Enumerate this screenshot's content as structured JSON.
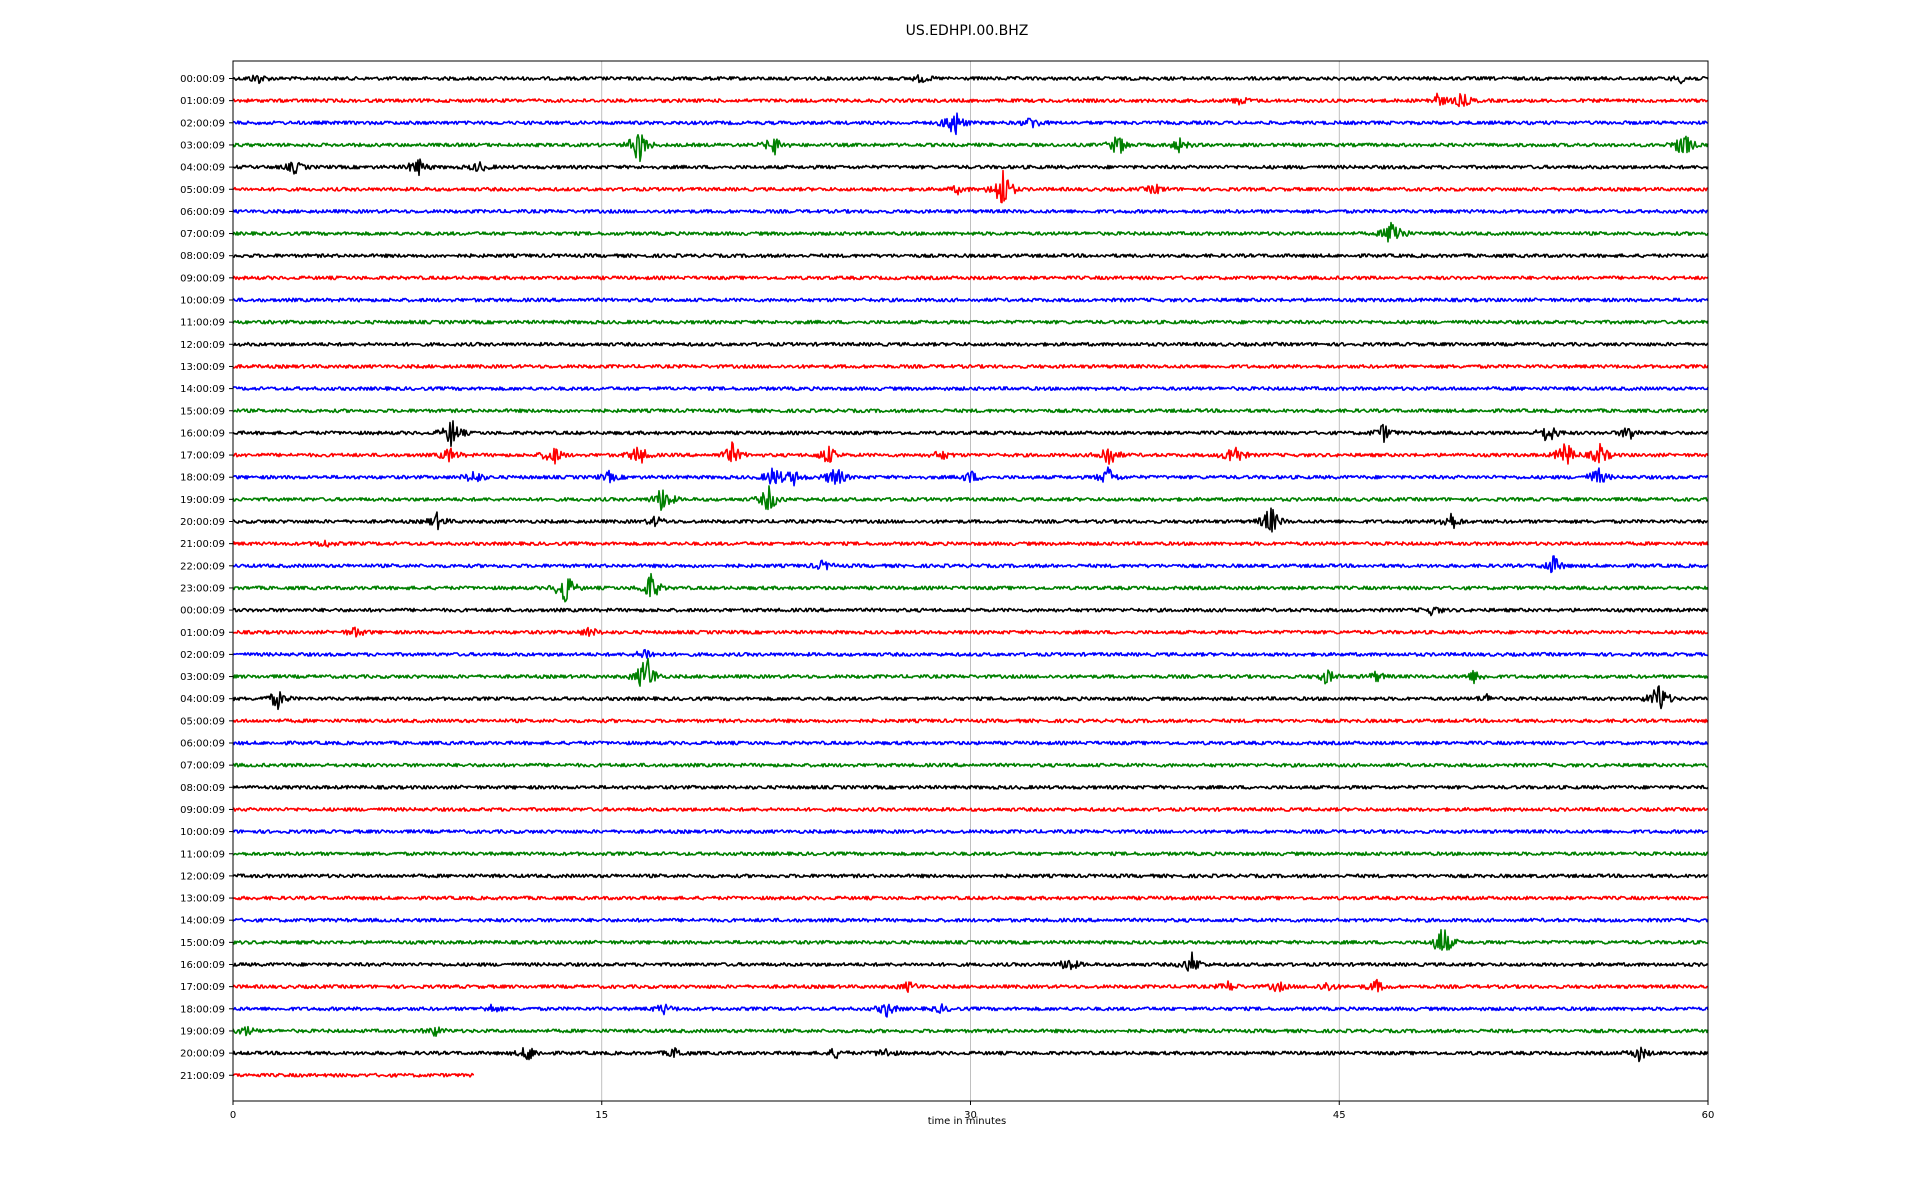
{
  "chart_data": {
    "type": "line",
    "title": "US.EDHPI.00.BHZ",
    "xlabel": "time in minutes",
    "ylabel": "",
    "xlim": [
      0,
      60
    ],
    "xticks": [
      0,
      15,
      30,
      45,
      60
    ],
    "xtick_labels": [
      "0",
      "15",
      "30",
      "45",
      "60"
    ],
    "grid": "vertical lines at x ticks",
    "color_cycle": [
      "#000000",
      "#ff0000",
      "#0000ff",
      "#008000"
    ],
    "rows": [
      {
        "label": "00:00:09",
        "color": "#000000",
        "end_minute": 60,
        "events": [
          {
            "t": 1,
            "a": 0.4
          },
          {
            "t": 28,
            "a": 0.3
          },
          {
            "t": 59,
            "a": 0.4
          }
        ]
      },
      {
        "label": "01:00:09",
        "color": "#ff0000",
        "end_minute": 60,
        "events": [
          {
            "t": 41,
            "a": 0.3
          },
          {
            "t": 49,
            "a": 0.5
          },
          {
            "t": 50,
            "a": 0.6
          }
        ]
      },
      {
        "label": "02:00:09",
        "color": "#0000ff",
        "end_minute": 60,
        "events": [
          {
            "t": 29.3,
            "a": 1.4
          },
          {
            "t": 32.5,
            "a": 0.5
          }
        ]
      },
      {
        "label": "03:00:09",
        "color": "#008000",
        "end_minute": 60,
        "events": [
          {
            "t": 16.5,
            "a": 1.6
          },
          {
            "t": 22,
            "a": 0.8
          },
          {
            "t": 36,
            "a": 0.9
          },
          {
            "t": 38.5,
            "a": 0.5
          },
          {
            "t": 59,
            "a": 1.2
          }
        ]
      },
      {
        "label": "04:00:09",
        "color": "#000000",
        "end_minute": 60,
        "events": [
          {
            "t": 2.5,
            "a": 0.5
          },
          {
            "t": 7.5,
            "a": 0.8
          },
          {
            "t": 10,
            "a": 0.4
          }
        ]
      },
      {
        "label": "05:00:09",
        "color": "#ff0000",
        "end_minute": 60,
        "events": [
          {
            "t": 29.5,
            "a": 0.3
          },
          {
            "t": 31.3,
            "a": 2.0
          },
          {
            "t": 37.5,
            "a": 0.4
          }
        ]
      },
      {
        "label": "06:00:09",
        "color": "#0000ff",
        "end_minute": 60,
        "events": []
      },
      {
        "label": "07:00:09",
        "color": "#008000",
        "end_minute": 60,
        "events": [
          {
            "t": 47.2,
            "a": 1.5
          }
        ]
      },
      {
        "label": "08:00:09",
        "color": "#000000",
        "end_minute": 60,
        "events": []
      },
      {
        "label": "09:00:09",
        "color": "#ff0000",
        "end_minute": 60,
        "events": []
      },
      {
        "label": "10:00:09",
        "color": "#0000ff",
        "end_minute": 60,
        "events": []
      },
      {
        "label": "11:00:09",
        "color": "#008000",
        "end_minute": 60,
        "events": []
      },
      {
        "label": "12:00:09",
        "color": "#000000",
        "end_minute": 60,
        "events": []
      },
      {
        "label": "13:00:09",
        "color": "#ff0000",
        "end_minute": 60,
        "events": []
      },
      {
        "label": "14:00:09",
        "color": "#0000ff",
        "end_minute": 60,
        "events": []
      },
      {
        "label": "15:00:09",
        "color": "#008000",
        "end_minute": 60,
        "events": []
      },
      {
        "label": "16:00:09",
        "color": "#000000",
        "end_minute": 60,
        "events": [
          {
            "t": 8.9,
            "a": 1.2
          },
          {
            "t": 46.8,
            "a": 0.7
          },
          {
            "t": 53.5,
            "a": 0.9
          },
          {
            "t": 56.8,
            "a": 0.6
          }
        ]
      },
      {
        "label": "17:00:09",
        "color": "#ff0000",
        "end_minute": 60,
        "events": [
          {
            "t": 8.8,
            "a": 0.6
          },
          {
            "t": 13,
            "a": 0.9
          },
          {
            "t": 16.5,
            "a": 0.9
          },
          {
            "t": 20.3,
            "a": 0.9
          },
          {
            "t": 24.2,
            "a": 0.8
          },
          {
            "t": 28.8,
            "a": 0.4
          },
          {
            "t": 35.6,
            "a": 1.1
          },
          {
            "t": 40.7,
            "a": 1.1
          },
          {
            "t": 54.2,
            "a": 1.2
          },
          {
            "t": 55.6,
            "a": 0.9
          }
        ]
      },
      {
        "label": "18:00:09",
        "color": "#0000ff",
        "end_minute": 60,
        "events": [
          {
            "t": 9.8,
            "a": 0.6
          },
          {
            "t": 15.3,
            "a": 0.4
          },
          {
            "t": 22,
            "a": 0.9
          },
          {
            "t": 22.8,
            "a": 0.6
          },
          {
            "t": 24.5,
            "a": 1.0
          },
          {
            "t": 30,
            "a": 0.5
          },
          {
            "t": 35.6,
            "a": 0.8
          },
          {
            "t": 55.5,
            "a": 0.8
          }
        ]
      },
      {
        "label": "19:00:09",
        "color": "#008000",
        "end_minute": 60,
        "events": [
          {
            "t": 17.5,
            "a": 1.2
          },
          {
            "t": 21.8,
            "a": 1.1
          }
        ]
      },
      {
        "label": "20:00:09",
        "color": "#000000",
        "end_minute": 60,
        "events": [
          {
            "t": 8.3,
            "a": 0.6
          },
          {
            "t": 17.2,
            "a": 0.4
          },
          {
            "t": 42.2,
            "a": 1.3
          },
          {
            "t": 49.5,
            "a": 0.9
          }
        ]
      },
      {
        "label": "21:00:09",
        "color": "#ff0000",
        "end_minute": 60,
        "events": [
          {
            "t": 3.7,
            "a": 0.3
          }
        ]
      },
      {
        "label": "22:00:09",
        "color": "#0000ff",
        "end_minute": 60,
        "events": [
          {
            "t": 24,
            "a": 0.4
          },
          {
            "t": 53.7,
            "a": 0.8
          }
        ]
      },
      {
        "label": "23:00:09",
        "color": "#008000",
        "end_minute": 60,
        "events": [
          {
            "t": 13.5,
            "a": 1.5
          },
          {
            "t": 17,
            "a": 1.2
          }
        ]
      },
      {
        "label": "00:00:09",
        "color": "#000000",
        "end_minute": 60,
        "events": [
          {
            "t": 48.8,
            "a": 0.4
          }
        ]
      },
      {
        "label": "01:00:09",
        "color": "#ff0000",
        "end_minute": 60,
        "events": [
          {
            "t": 5,
            "a": 0.4
          },
          {
            "t": 14.5,
            "a": 0.4
          }
        ]
      },
      {
        "label": "02:00:09",
        "color": "#0000ff",
        "end_minute": 60,
        "events": [
          {
            "t": 16.8,
            "a": 0.5
          }
        ]
      },
      {
        "label": "03:00:09",
        "color": "#008000",
        "end_minute": 60,
        "events": [
          {
            "t": 16.8,
            "a": 2.0
          },
          {
            "t": 44.5,
            "a": 0.6
          },
          {
            "t": 46.5,
            "a": 0.4
          },
          {
            "t": 50.5,
            "a": 0.5
          }
        ]
      },
      {
        "label": "04:00:09",
        "color": "#000000",
        "end_minute": 60,
        "events": [
          {
            "t": 1.8,
            "a": 0.8
          },
          {
            "t": 51,
            "a": 0.3
          },
          {
            "t": 58,
            "a": 1.4
          }
        ]
      },
      {
        "label": "05:00:09",
        "color": "#ff0000",
        "end_minute": 60,
        "events": []
      },
      {
        "label": "06:00:09",
        "color": "#0000ff",
        "end_minute": 60,
        "events": []
      },
      {
        "label": "07:00:09",
        "color": "#008000",
        "end_minute": 60,
        "events": []
      },
      {
        "label": "08:00:09",
        "color": "#000000",
        "end_minute": 60,
        "events": []
      },
      {
        "label": "09:00:09",
        "color": "#ff0000",
        "end_minute": 60,
        "events": []
      },
      {
        "label": "10:00:09",
        "color": "#0000ff",
        "end_minute": 60,
        "events": []
      },
      {
        "label": "11:00:09",
        "color": "#008000",
        "end_minute": 60,
        "events": []
      },
      {
        "label": "12:00:09",
        "color": "#000000",
        "end_minute": 60,
        "events": []
      },
      {
        "label": "13:00:09",
        "color": "#ff0000",
        "end_minute": 60,
        "events": []
      },
      {
        "label": "14:00:09",
        "color": "#0000ff",
        "end_minute": 60,
        "events": []
      },
      {
        "label": "15:00:09",
        "color": "#008000",
        "end_minute": 60,
        "events": [
          {
            "t": 49.2,
            "a": 1.5
          }
        ]
      },
      {
        "label": "16:00:09",
        "color": "#000000",
        "end_minute": 60,
        "events": [
          {
            "t": 34,
            "a": 0.6
          },
          {
            "t": 39,
            "a": 0.9
          }
        ]
      },
      {
        "label": "17:00:09",
        "color": "#ff0000",
        "end_minute": 60,
        "events": [
          {
            "t": 27.5,
            "a": 0.4
          },
          {
            "t": 40.5,
            "a": 0.4
          },
          {
            "t": 42.5,
            "a": 0.4
          },
          {
            "t": 44.5,
            "a": 0.4
          },
          {
            "t": 46.5,
            "a": 0.5
          }
        ]
      },
      {
        "label": "18:00:09",
        "color": "#0000ff",
        "end_minute": 60,
        "events": [
          {
            "t": 10.5,
            "a": 0.3
          },
          {
            "t": 17.5,
            "a": 0.4
          },
          {
            "t": 26.6,
            "a": 0.6
          },
          {
            "t": 28.8,
            "a": 0.3
          }
        ]
      },
      {
        "label": "19:00:09",
        "color": "#008000",
        "end_minute": 60,
        "events": [
          {
            "t": 0.5,
            "a": 0.4
          },
          {
            "t": 8.2,
            "a": 0.4
          }
        ]
      },
      {
        "label": "20:00:09",
        "color": "#000000",
        "end_minute": 60,
        "events": [
          {
            "t": 12,
            "a": 0.7
          },
          {
            "t": 18,
            "a": 0.4
          },
          {
            "t": 24.5,
            "a": 0.4
          },
          {
            "t": 26.5,
            "a": 0.4
          },
          {
            "t": 57.2,
            "a": 0.6
          }
        ]
      },
      {
        "label": "21:00:09",
        "color": "#ff0000",
        "end_minute": 9.8,
        "events": []
      }
    ]
  }
}
